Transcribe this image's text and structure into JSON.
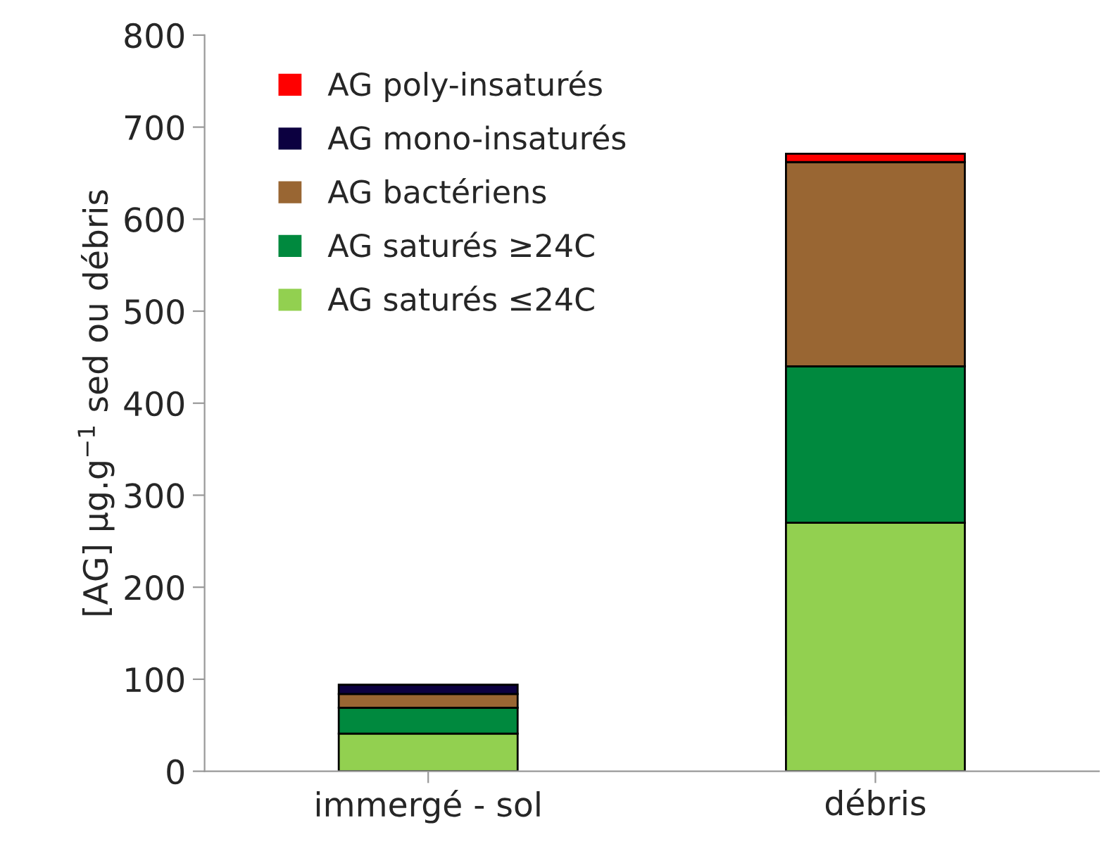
{
  "chart_data": {
    "type": "bar",
    "stacked": true,
    "ylabel": "[AG] µg.g$^{−1}$ sed ou débris",
    "categories": [
      "immergé - sol",
      "débris"
    ],
    "series": [
      {
        "name": "AG saturés ≤24C",
        "color": "#92d050",
        "values": [
          41,
          270
        ]
      },
      {
        "name": "AG saturés ≥24C",
        "color": "#00893e",
        "values": [
          28,
          170
        ]
      },
      {
        "name": "AG bactériens",
        "color": "#996633",
        "values": [
          15,
          222
        ]
      },
      {
        "name": "AG mono-insaturés",
        "color": "#0c0040",
        "values": [
          10,
          null
        ]
      },
      {
        "name": "AG poly-insaturés",
        "color": "#ff0000",
        "values": [
          null,
          9
        ]
      }
    ],
    "ylim": [
      0,
      800
    ],
    "yticks": [
      0,
      100,
      200,
      300,
      400,
      500,
      600,
      700,
      800
    ],
    "grid": false,
    "legend": "top left"
  }
}
